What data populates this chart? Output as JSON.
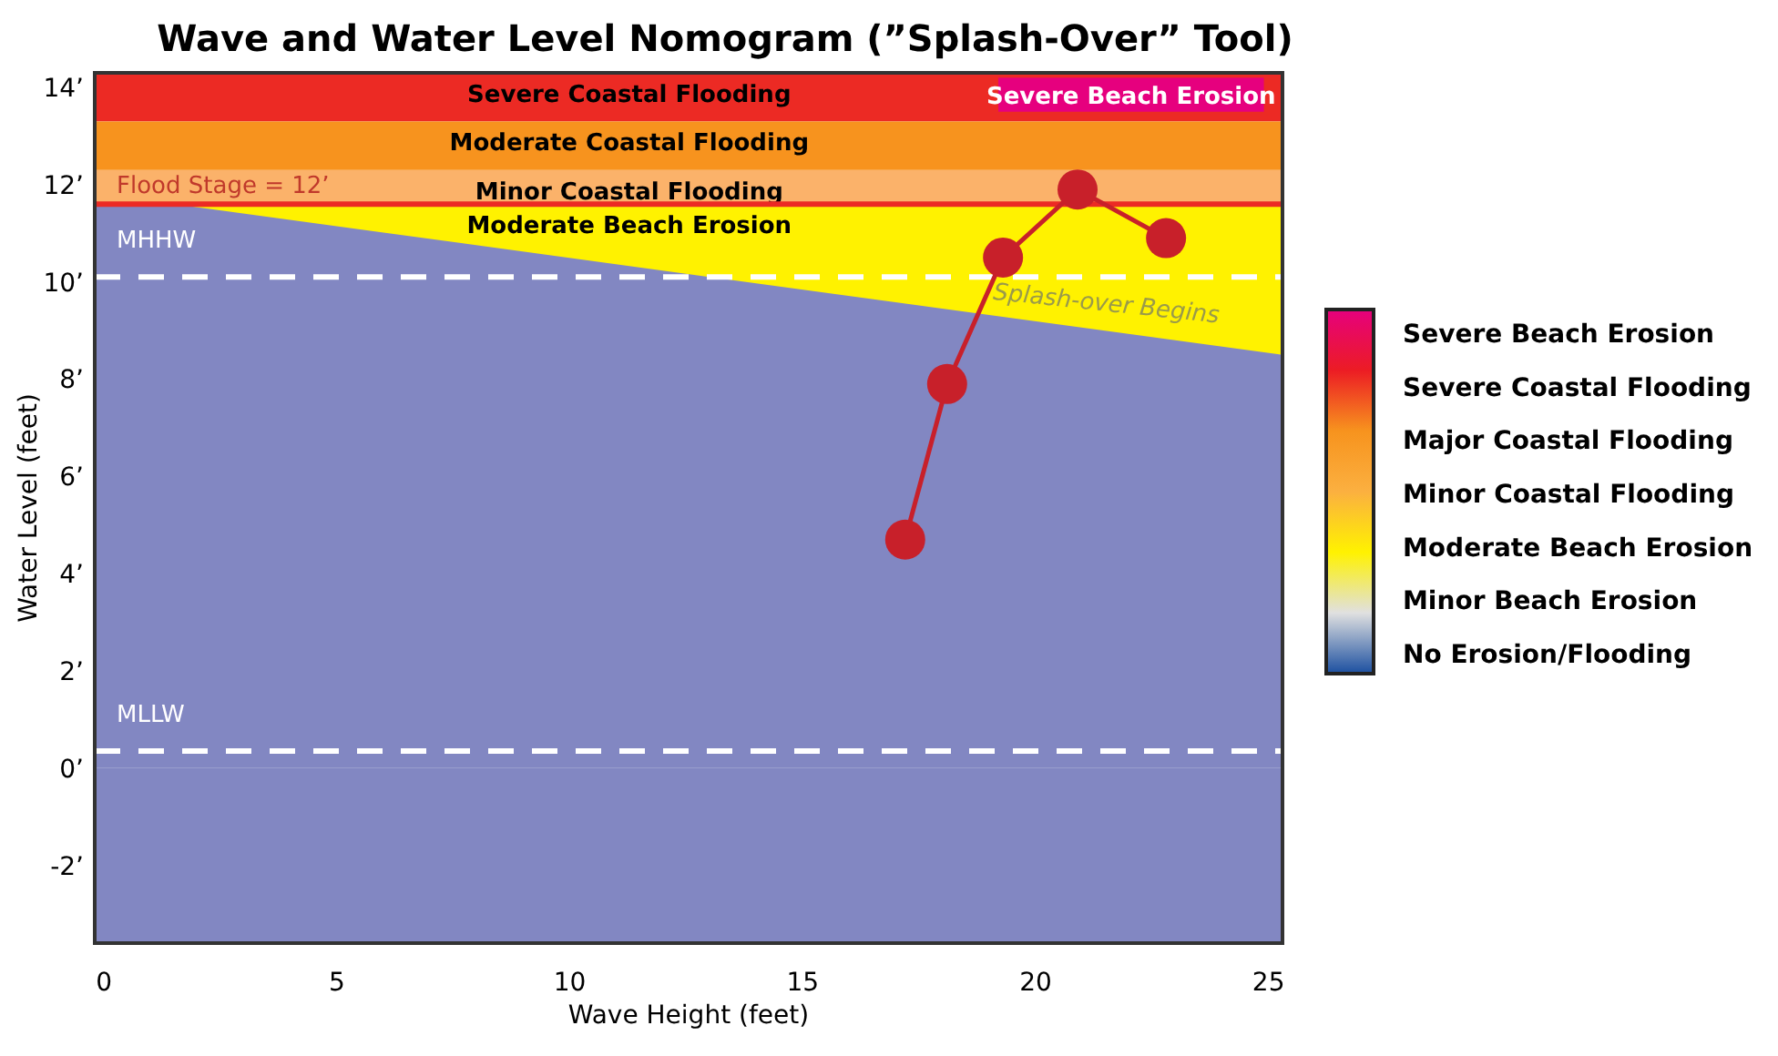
{
  "chart_data": {
    "type": "line",
    "title": "Wave and Water Level Nomogram (”Splash-Over” Tool)",
    "xlabel": "Wave Height (feet)",
    "ylabel": "Water Level (feet)",
    "xlim": [
      -0.2,
      25.3
    ],
    "ylim": [
      -3.6,
      14.3
    ],
    "xticks": [
      0,
      5,
      10,
      15,
      20,
      25
    ],
    "yticks": [
      {
        "value": -2,
        "label": "-2’"
      },
      {
        "value": 0,
        "label": "0’"
      },
      {
        "value": 2,
        "label": "2’"
      },
      {
        "value": 4,
        "label": "4’"
      },
      {
        "value": 6,
        "label": "6’"
      },
      {
        "value": 8,
        "label": "8’"
      },
      {
        "value": 10,
        "label": "10’"
      },
      {
        "value": 12,
        "label": "12’"
      },
      {
        "value": 14,
        "label": "14’"
      }
    ],
    "bands": [
      {
        "axis": "y",
        "from": -3.6,
        "to": 0,
        "color": "#8287c2"
      },
      {
        "axis": "y",
        "from": 13.3,
        "to": 14.3,
        "label": "Severe Coastal Flooding",
        "color": "#ec2a24"
      },
      {
        "axis": "y",
        "from": 12.3,
        "to": 13.3,
        "label": "Moderate Coastal Flooding",
        "color": "#f7931e"
      },
      {
        "axis": "y",
        "from": 11.6,
        "to": 12.3,
        "label": "Minor Coastal Flooding",
        "color": "#fbb26a"
      },
      {
        "axis": "y",
        "from": 8.5,
        "to": 11.6,
        "label": "Moderate Beach Erosion",
        "color": "#fff200"
      }
    ],
    "ref_lines": [
      {
        "axis": "y",
        "value": 11.6,
        "label": "Flood Stage = 12’",
        "color": "#ec2a24",
        "line_style": "solid"
      },
      {
        "axis": "y",
        "value": 10.1,
        "label": "MHHW",
        "color": "#ffffff",
        "line_style": "dashed"
      },
      {
        "axis": "y",
        "value": 0.35,
        "label": "MLLW",
        "color": "#ffffff",
        "line_style": "dashed"
      }
    ],
    "series": [
      {
        "type": "area",
        "color": "#8287c2",
        "x": [
          -0.2,
          1.5,
          25.3
        ],
        "values": [
          11.6,
          11.6,
          8.5
        ]
      },
      {
        "type": "line",
        "color": "#c8202a",
        "x": [
          17.2,
          18.1,
          19.3,
          20.9,
          22.8
        ],
        "values": [
          4.7,
          7.9,
          10.5,
          11.9,
          10.9
        ],
        "marker": "circle",
        "line_style": "solid"
      }
    ],
    "annotations": [
      "Severe Beach Erosion",
      "Splash-over Begins",
      "Severe Beach Erosion",
      "Severe Coastal Flooding",
      "Major Coastal Flooding",
      "Minor Coastal Flooding",
      "Moderate Beach Erosion",
      "Minor Beach Erosion",
      "No Erosion/Flooding"
    ],
    "grid": false
  }
}
